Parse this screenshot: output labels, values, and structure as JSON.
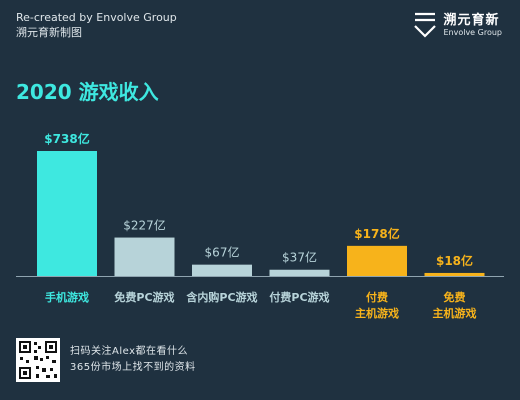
{
  "header": {
    "credit_line1": "Re-created by Envolve Group",
    "credit_line2": "溯元育新制图",
    "brand_cn": "溯元育新",
    "brand_en": "Envolve Group"
  },
  "footer": {
    "line1": "扫码关注Alex都在看什么",
    "line2": "365份市场上找不到的资料"
  },
  "colors": {
    "background": "#1f3140",
    "mobile": "#3ee8e0",
    "pc": "#b7d3d9",
    "console": "#f7b31b",
    "title": "#3ee8e0"
  },
  "chart_data": {
    "type": "bar",
    "title": "2020 游戏收入",
    "unit": "亿美元",
    "categories": [
      [
        "手机游戏"
      ],
      [
        "免费PC游戏"
      ],
      [
        "含内购PC游戏"
      ],
      [
        "付费PC游戏"
      ],
      [
        "付费",
        "主机游戏"
      ],
      [
        "免费",
        "主机游戏"
      ]
    ],
    "values": [
      738,
      227,
      67,
      37,
      178,
      18
    ],
    "value_labels": [
      "$738亿",
      "$227亿",
      "$67亿",
      "$37亿",
      "$178亿",
      "$18亿"
    ],
    "groups": [
      "mobile",
      "pc",
      "pc",
      "pc",
      "console",
      "console"
    ],
    "ylim": [
      0,
      738
    ],
    "grid": false,
    "legend": "none"
  }
}
